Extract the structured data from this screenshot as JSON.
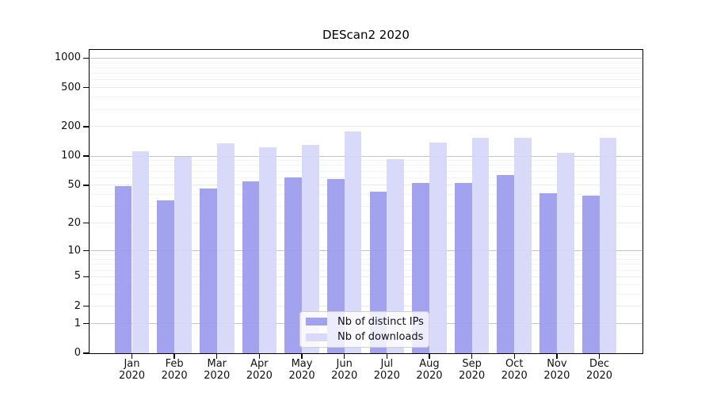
{
  "chart_data": {
    "type": "bar",
    "title": "DEScan2 2020",
    "x_categories": [
      "Jan",
      "Feb",
      "Mar",
      "Apr",
      "May",
      "Jun",
      "Jul",
      "Aug",
      "Sep",
      "Oct",
      "Nov",
      "Dec"
    ],
    "x_year_label": "2020",
    "series": [
      {
        "name": "Nb of distinct IPs",
        "color": "#9a9aee",
        "values": [
          49,
          35,
          46,
          55,
          60,
          58,
          43,
          53,
          53,
          64,
          41,
          39
        ]
      },
      {
        "name": "Nb of downloads",
        "color": "#d6d6f8",
        "values": [
          113,
          99,
          135,
          123,
          129,
          179,
          93,
          138,
          153,
          155,
          108,
          154
        ]
      }
    ],
    "y_axis": {
      "scale": "log1p",
      "ticks": [
        0,
        1,
        2,
        5,
        10,
        20,
        50,
        100,
        200,
        500,
        1000
      ],
      "ylim": [
        0,
        1210
      ],
      "grid": "on"
    },
    "legend_position": "bottom-center-inside"
  },
  "colors": {
    "grid_major": "#c4c4c4",
    "grid_mid": "#eaeaea",
    "grid_minor": "#f3f3f3",
    "axis": "#000000",
    "legend_border": "#d0d0d0",
    "background": "#ffffff"
  }
}
